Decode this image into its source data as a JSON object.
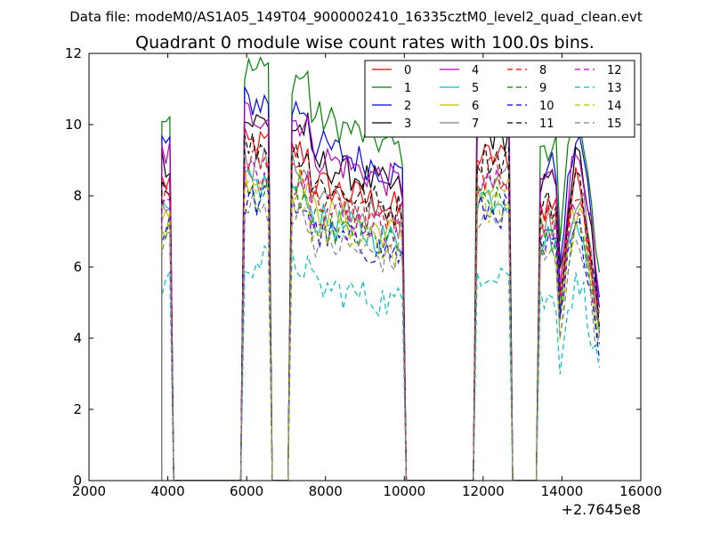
{
  "suptitle": "Data file: modeM0/AS1A05_149T04_9000002410_16335cztM0_level2_quad_clean.evt",
  "chart_data": {
    "type": "line",
    "title": "Quadrant 0 module wise count rates with 100.0s bins.",
    "xlabel": "",
    "ylabel": "",
    "x_offset_label": "+2.7645e8",
    "xlim": [
      2000,
      16000
    ],
    "ylim": [
      0,
      12
    ],
    "x_ticks": [
      2000,
      4000,
      6000,
      8000,
      10000,
      12000,
      14000,
      16000
    ],
    "x_tick_labels": [
      "2000",
      "4000",
      "6000",
      "8000",
      "10000",
      "12000",
      "14000",
      "16000"
    ],
    "y_ticks": [
      0,
      2,
      4,
      6,
      8,
      10,
      12
    ],
    "y_tick_labels": [
      "0",
      "2",
      "4",
      "6",
      "8",
      "10",
      "12"
    ],
    "legend_position": "top-right",
    "legend_columns": 4,
    "bin_width": 100,
    "segments": [
      {
        "start": 3850,
        "end": 4050
      },
      {
        "start": 5950,
        "end": 6550
      },
      {
        "start": 7150,
        "end": 9950
      },
      {
        "start": 11850,
        "end": 12650
      },
      {
        "start": 13450,
        "end": 14950
      }
    ],
    "series": [
      {
        "name": "0",
        "color": "#ff0000",
        "dashed": false,
        "level": 8.4
      },
      {
        "name": "1",
        "color": "#008000",
        "dashed": false,
        "level": 10.3
      },
      {
        "name": "2",
        "color": "#0000ff",
        "dashed": false,
        "level": 9.5
      },
      {
        "name": "3",
        "color": "#000000",
        "dashed": false,
        "level": 9.0
      },
      {
        "name": "4",
        "color": "#bf00bf",
        "dashed": false,
        "level": 9.2
      },
      {
        "name": "5",
        "color": "#00bfbf",
        "dashed": false,
        "level": 7.4
      },
      {
        "name": "6",
        "color": "#bfbf00",
        "dashed": false,
        "level": 7.6
      },
      {
        "name": "7",
        "color": "#808080",
        "dashed": false,
        "level": 8.0
      },
      {
        "name": "8",
        "color": "#ff0000",
        "dashed": true,
        "level": 8.0
      },
      {
        "name": "9",
        "color": "#008000",
        "dashed": true,
        "level": 7.2
      },
      {
        "name": "10",
        "color": "#0000ff",
        "dashed": true,
        "level": 7.0
      },
      {
        "name": "11",
        "color": "#000000",
        "dashed": true,
        "level": 8.4
      },
      {
        "name": "12",
        "color": "#bf00bf",
        "dashed": true,
        "level": 7.7
      },
      {
        "name": "13",
        "color": "#00bfbf",
        "dashed": true,
        "level": 5.5
      },
      {
        "name": "14",
        "color": "#bfbf00",
        "dashed": true,
        "level": 7.1
      },
      {
        "name": "15",
        "color": "#808080",
        "dashed": true,
        "level": 6.8
      }
    ]
  }
}
